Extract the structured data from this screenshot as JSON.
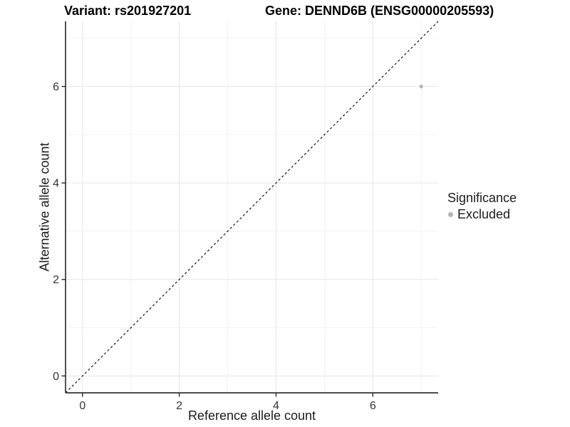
{
  "titles": {
    "variant": "Variant: rs201927201",
    "gene": "Gene: DENND6B (ENSG00000205593)"
  },
  "axes": {
    "x_label": "Reference allele count",
    "y_label": "Alternative allele count"
  },
  "legend": {
    "title": "Significance",
    "items": [
      {
        "label": "Excluded",
        "color": "#b3b3b3"
      }
    ]
  },
  "chart_data": {
    "type": "scatter",
    "title_left": "Variant: rs201927201",
    "title_right": "Gene: DENND6B (ENSG00000205593)",
    "xlabel": "Reference allele count",
    "ylabel": "Alternative allele count",
    "xlim": [
      -0.35,
      7.35
    ],
    "ylim": [
      -0.35,
      7.35
    ],
    "major_ticks": [
      0,
      2,
      4,
      6
    ],
    "minor_gridlines": [
      1,
      3,
      5,
      7
    ],
    "grid": "major+minor",
    "legend_position": "right",
    "series": [
      {
        "name": "Excluded",
        "color": "#b3b3b3",
        "points": [
          {
            "x": 7,
            "y": 6
          }
        ]
      }
    ],
    "identity_line": {
      "slope": 1,
      "intercept": 0,
      "style": "dashed",
      "color": "#000000"
    },
    "colors": {
      "grid_major": "#e6e6e6",
      "grid_minor": "#f2f2f2",
      "axis": "#333333",
      "tick_text": "#333333",
      "point": "#b3b3b3"
    }
  }
}
